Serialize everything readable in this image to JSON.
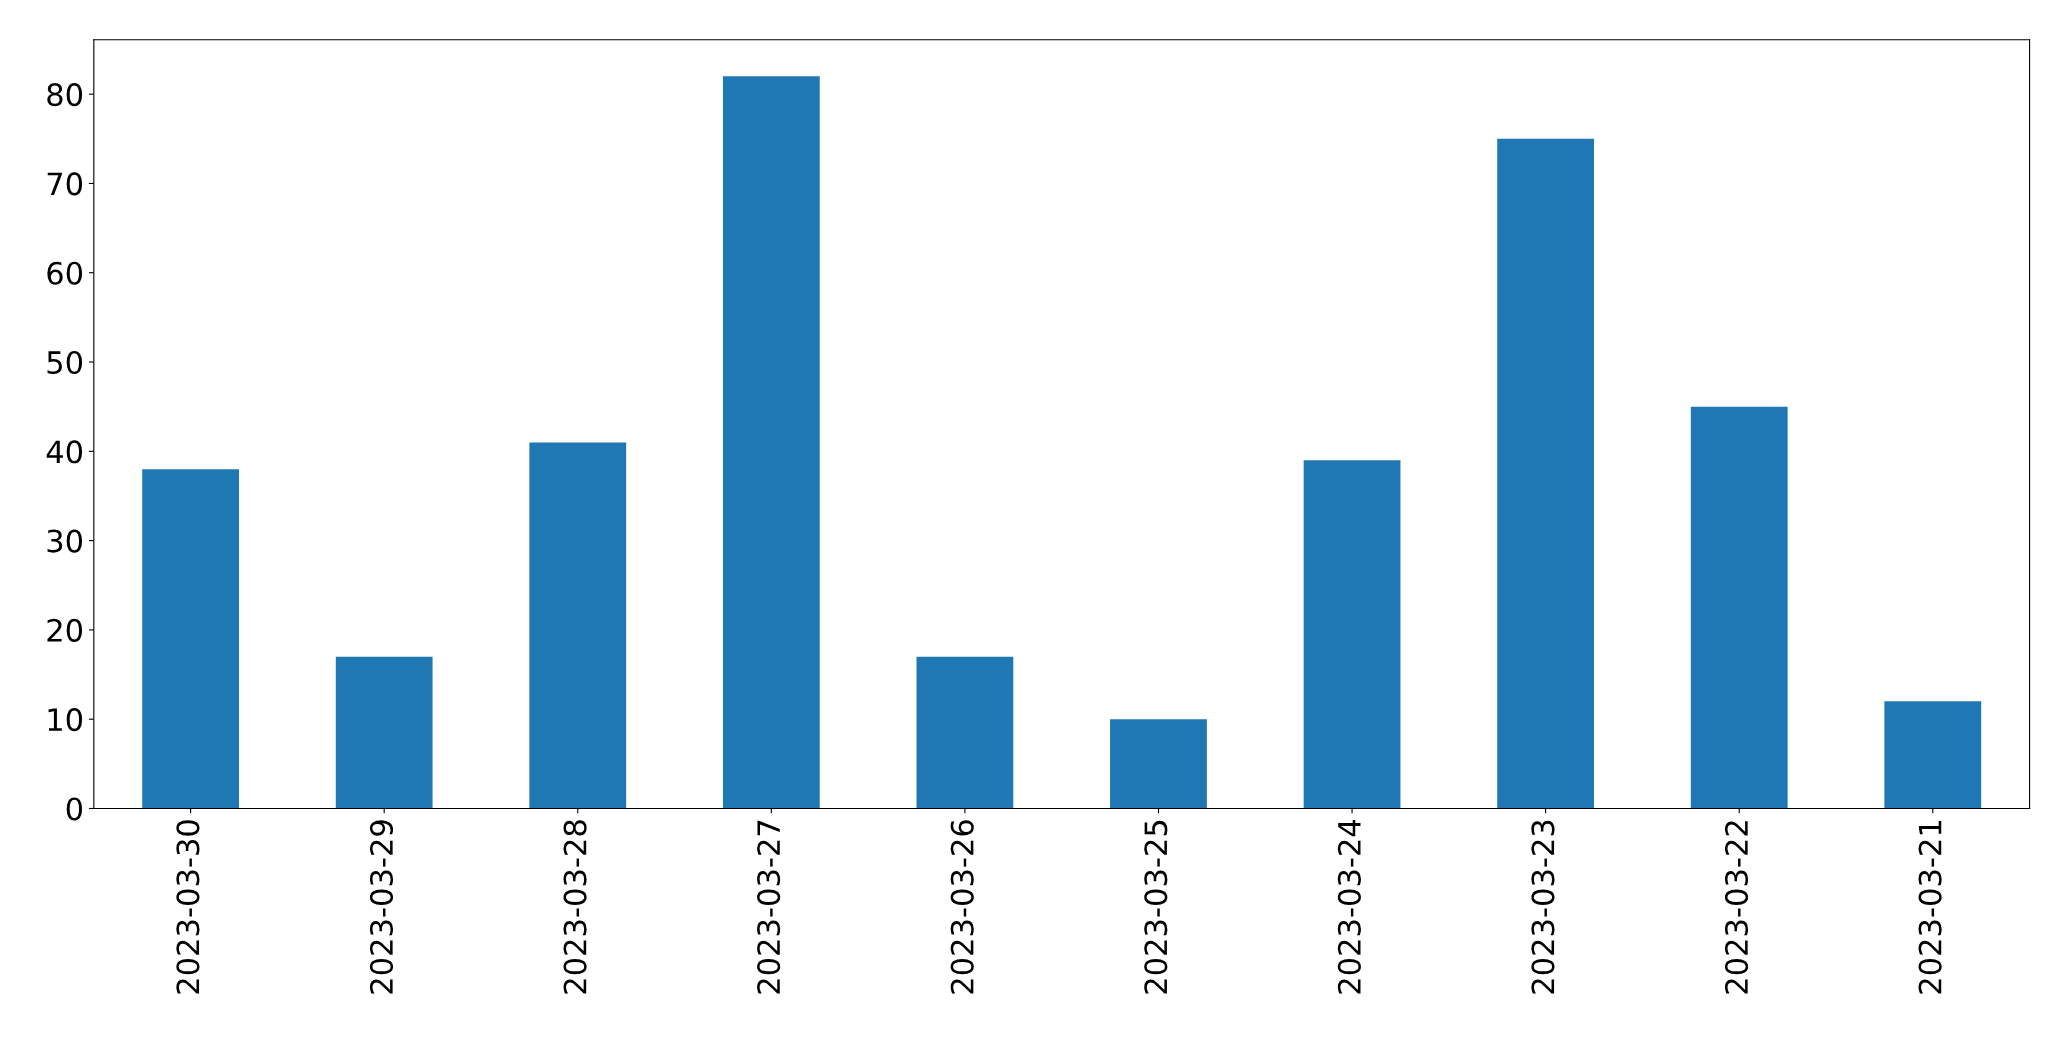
{
  "chart_data": {
    "type": "bar",
    "categories": [
      "2023-03-30",
      "2023-03-29",
      "2023-03-28",
      "2023-03-27",
      "2023-03-26",
      "2023-03-25",
      "2023-03-24",
      "2023-03-23",
      "2023-03-22",
      "2023-03-21"
    ],
    "values": [
      38,
      17,
      41,
      82,
      17,
      10,
      39,
      75,
      45,
      12
    ],
    "color": "#1f77b4",
    "ylim": [
      0,
      86.1
    ],
    "yticks": [
      0,
      10,
      20,
      30,
      40,
      50,
      60,
      70,
      80
    ],
    "grid": false
  }
}
